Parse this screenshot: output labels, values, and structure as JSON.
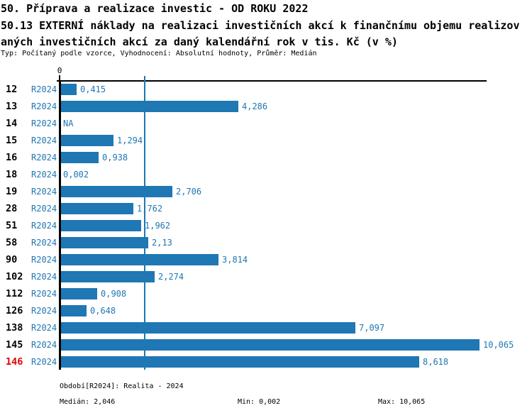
{
  "header": {
    "title_line1": "50. Příprava a realizace investic - OD ROKU 2022",
    "title_line2": "50.13 EXTERNÍ náklady na realizaci investičních akcí k finančnímu objemu realizov",
    "title_line3": "aných investičních akcí za daný kalendářní rok v tis. Kč (v %)",
    "meta": "Typ: Počítaný podle vzorce, Vyhodnocení: Absolutní hodnoty, Průměr: Medián"
  },
  "chart_data": {
    "type": "bar",
    "orientation": "horizontal",
    "title": "50.13 EXTERNÍ náklady na realizaci investičních akcí k finančnímu objemu realizovaných investičních akcí za daný kalendářní rok v tis. Kč (v %)",
    "series_label": "R2024",
    "origin_tick": "0",
    "categories": [
      "12",
      "13",
      "14",
      "15",
      "16",
      "18",
      "19",
      "28",
      "51",
      "58",
      "90",
      "102",
      "112",
      "126",
      "138",
      "145",
      "146"
    ],
    "values": [
      0.415,
      4.286,
      null,
      1.294,
      0.938,
      0.002,
      2.706,
      1.762,
      1.962,
      2.13,
      3.814,
      2.274,
      0.908,
      0.648,
      7.097,
      10.065,
      8.618
    ],
    "value_labels": [
      "0,415",
      "4,286",
      "NA",
      "1,294",
      "0,938",
      "0,002",
      "2,706",
      "1,762",
      "1,962",
      "2,13",
      "3,814",
      "2,274",
      "0,908",
      "0,648",
      "7,097",
      "10,065",
      "8,618"
    ],
    "median_value": 2.046,
    "x_axis": {
      "min": 0,
      "max_approx": 10.24,
      "grid": false
    },
    "legend": "none",
    "highlighted_category": "146",
    "bar_color": "#1f77b4",
    "category_color": "#000000",
    "highlight_color": "#dd0000"
  },
  "footer": {
    "period": "Období[R2024]: Realita - 2024",
    "median": "Medián: 2,046",
    "min": "Min: 0,002",
    "max": "Max: 10,065"
  }
}
